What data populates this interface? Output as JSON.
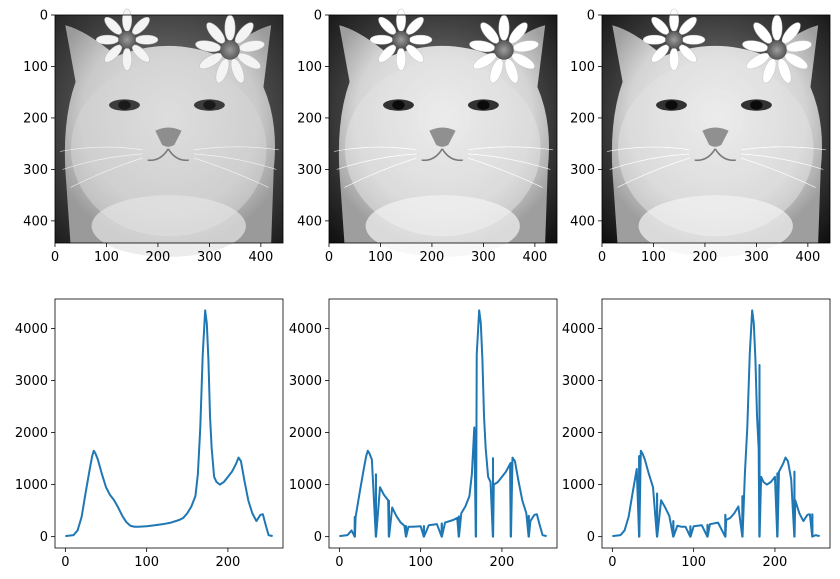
{
  "chart_data": [
    {
      "type": "image",
      "image": "grayscale-cat-with-daisies",
      "variant": "original",
      "xticks": [
        0,
        100,
        200,
        300,
        400
      ],
      "yticks": [
        0,
        100,
        200,
        300,
        400
      ],
      "xlim": [
        0,
        443
      ],
      "ylim": [
        443,
        0
      ]
    },
    {
      "type": "image",
      "image": "grayscale-cat-with-daisies",
      "variant": "contrast-adjusted",
      "xticks": [
        0,
        100,
        200,
        300,
        400
      ],
      "yticks": [
        0,
        100,
        200,
        300,
        400
      ],
      "xlim": [
        0,
        443
      ],
      "ylim": [
        443,
        0
      ]
    },
    {
      "type": "image",
      "image": "grayscale-cat-with-daisies",
      "variant": "contrast-adjusted",
      "xticks": [
        0,
        100,
        200,
        300,
        400
      ],
      "yticks": [
        0,
        100,
        200,
        300,
        400
      ],
      "xlim": [
        0,
        443
      ],
      "ylim": [
        443,
        0
      ]
    },
    {
      "type": "line",
      "color": "#1f77b4",
      "xlim": [
        -12.75,
        267.75
      ],
      "ylim": [
        -218,
        4568
      ],
      "xticks": [
        0,
        100,
        200
      ],
      "yticks": [
        0,
        1000,
        2000,
        3000,
        4000
      ],
      "x": [
        0,
        10,
        15,
        20,
        25,
        30,
        33,
        35,
        37,
        40,
        45,
        50,
        55,
        60,
        65,
        70,
        75,
        80,
        85,
        90,
        100,
        110,
        120,
        130,
        140,
        145,
        150,
        155,
        160,
        163,
        166,
        169,
        172,
        174,
        176,
        178,
        180,
        183,
        186,
        190,
        195,
        200,
        205,
        210,
        213,
        216,
        220,
        225,
        230,
        235,
        240,
        243,
        246,
        250,
        255
      ],
      "values": [
        10,
        30,
        120,
        380,
        850,
        1300,
        1550,
        1650,
        1600,
        1480,
        1200,
        950,
        800,
        700,
        560,
        400,
        280,
        210,
        190,
        190,
        200,
        220,
        240,
        270,
        320,
        360,
        450,
        580,
        780,
        1200,
        2100,
        3500,
        4350,
        4100,
        3400,
        2300,
        1700,
        1150,
        1050,
        1000,
        1050,
        1150,
        1250,
        1400,
        1520,
        1450,
        1100,
        700,
        450,
        300,
        420,
        430,
        250,
        30,
        10
      ]
    },
    {
      "type": "line",
      "color": "#1f77b4",
      "xlim": [
        -12.75,
        267.75
      ],
      "ylim": [
        -218,
        4568
      ],
      "xticks": [
        0,
        100,
        200
      ],
      "yticks": [
        0,
        1000,
        2000,
        3000,
        4000
      ],
      "x": [
        0,
        10,
        15,
        20,
        25,
        30,
        33,
        35,
        37,
        40,
        45,
        50,
        55,
        60,
        65,
        70,
        75,
        80,
        85,
        90,
        100,
        110,
        120,
        130,
        140,
        145,
        150,
        155,
        160,
        163,
        166,
        169,
        172,
        174,
        176,
        178,
        180,
        183,
        186,
        190,
        195,
        200,
        205,
        210,
        213,
        216,
        220,
        225,
        230,
        235,
        240,
        243,
        246,
        250,
        255
      ],
      "values": [
        10,
        30,
        120,
        380,
        850,
        1300,
        1550,
        1650,
        1600,
        1480,
        1200,
        950,
        800,
        700,
        560,
        400,
        280,
        210,
        190,
        190,
        200,
        220,
        240,
        270,
        320,
        360,
        450,
        580,
        780,
        1200,
        2100,
        3500,
        4350,
        4100,
        3400,
        2300,
        1700,
        1150,
        1050,
        1000,
        1050,
        1150,
        1250,
        1400,
        1520,
        1450,
        1100,
        700,
        450,
        300,
        420,
        430,
        250,
        30,
        10
      ],
      "spikes": [
        {
          "x": 19,
          "y": 380
        },
        {
          "x": 45,
          "y": 1200
        },
        {
          "x": 61,
          "y": 690
        },
        {
          "x": 82,
          "y": 205
        },
        {
          "x": 104,
          "y": 205
        },
        {
          "x": 126,
          "y": 255
        },
        {
          "x": 147,
          "y": 390
        },
        {
          "x": 168,
          "y": 2060
        },
        {
          "x": 189,
          "y": 1510
        },
        {
          "x": 211,
          "y": 1420
        },
        {
          "x": 233,
          "y": 400
        }
      ]
    },
    {
      "type": "line",
      "color": "#1f77b4",
      "xlim": [
        -12.75,
        267.75
      ],
      "ylim": [
        -218,
        4568
      ],
      "xticks": [
        0,
        100,
        200
      ],
      "yticks": [
        0,
        1000,
        2000,
        3000,
        4000
      ],
      "x": [
        0,
        10,
        15,
        20,
        25,
        30,
        33,
        35,
        37,
        40,
        45,
        50,
        55,
        60,
        65,
        70,
        75,
        80,
        85,
        90,
        100,
        110,
        120,
        130,
        140,
        145,
        150,
        155,
        160,
        163,
        166,
        169,
        172,
        174,
        176,
        178,
        180,
        183,
        186,
        190,
        195,
        200,
        205,
        210,
        213,
        216,
        220,
        225,
        230,
        235,
        240,
        243,
        246,
        250,
        255
      ],
      "values": [
        10,
        30,
        120,
        380,
        850,
        1300,
        1550,
        1650,
        1600,
        1480,
        1200,
        950,
        800,
        700,
        560,
        400,
        280,
        210,
        190,
        190,
        200,
        220,
        240,
        270,
        320,
        360,
        450,
        580,
        780,
        1200,
        2100,
        3500,
        4350,
        4100,
        3400,
        2300,
        1700,
        1150,
        1050,
        1000,
        1050,
        1150,
        1250,
        1400,
        1520,
        1450,
        1100,
        700,
        450,
        300,
        420,
        430,
        250,
        30,
        10
      ],
      "spikes": [
        {
          "x": 33,
          "y": 1540
        },
        {
          "x": 55,
          "y": 830
        },
        {
          "x": 75,
          "y": 300
        },
        {
          "x": 96,
          "y": 200
        },
        {
          "x": 117,
          "y": 230
        },
        {
          "x": 139,
          "y": 420
        },
        {
          "x": 160,
          "y": 780
        },
        {
          "x": 181,
          "y": 3300
        },
        {
          "x": 203,
          "y": 1220
        },
        {
          "x": 224,
          "y": 1250
        },
        {
          "x": 246,
          "y": 430
        }
      ]
    }
  ]
}
